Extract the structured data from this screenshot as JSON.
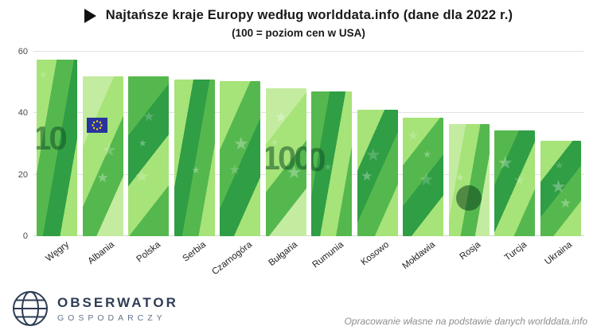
{
  "header": {
    "title": "Najtańsze kraje Europy według worlddata.info (dane dla 2022 r.)",
    "subtitle": "(100 = poziom cen w USA)"
  },
  "chart_data": {
    "type": "bar",
    "categories": [
      "Węgry",
      "Albania",
      "Polska",
      "Serbia",
      "Czarnogóra",
      "Bułgaria",
      "Rumunia",
      "Kosowo",
      "Mołdawia",
      "Rosja",
      "Turcja",
      "Ukraina"
    ],
    "values": [
      57.5,
      52,
      52,
      51,
      50.5,
      48,
      47,
      41,
      38.5,
      36.5,
      34.5,
      31
    ],
    "title": "Najtańsze kraje Europy według worlddata.info (dane dla 2022 r.)",
    "xlabel": "",
    "ylabel": "",
    "ylim": [
      0,
      60
    ],
    "yticks": [
      0,
      20,
      40,
      60
    ],
    "grid": "horizontal",
    "legend": "none",
    "bar_style": "euro-banknote-texture",
    "banknote_watermarks": [
      "10",
      "",
      "",
      "",
      "",
      "100",
      "0",
      "",
      "",
      "",
      "",
      ""
    ]
  },
  "colors": {
    "bar_green_light": "#a6e378",
    "bar_green": "#55b84e",
    "bar_green_dark": "#2f9e44",
    "bar_green_pale": "#c4eca0",
    "logo_navy": "#2e3d54",
    "eu_flag_blue": "#27339f",
    "eu_flag_yellow": "#ffd700"
  },
  "footer": {
    "logo_title": "OBSERWATOR",
    "logo_subtitle": "GOSPODARCZY",
    "source_note": "Opracowanie własne na podstawie danych worlddata.info"
  }
}
